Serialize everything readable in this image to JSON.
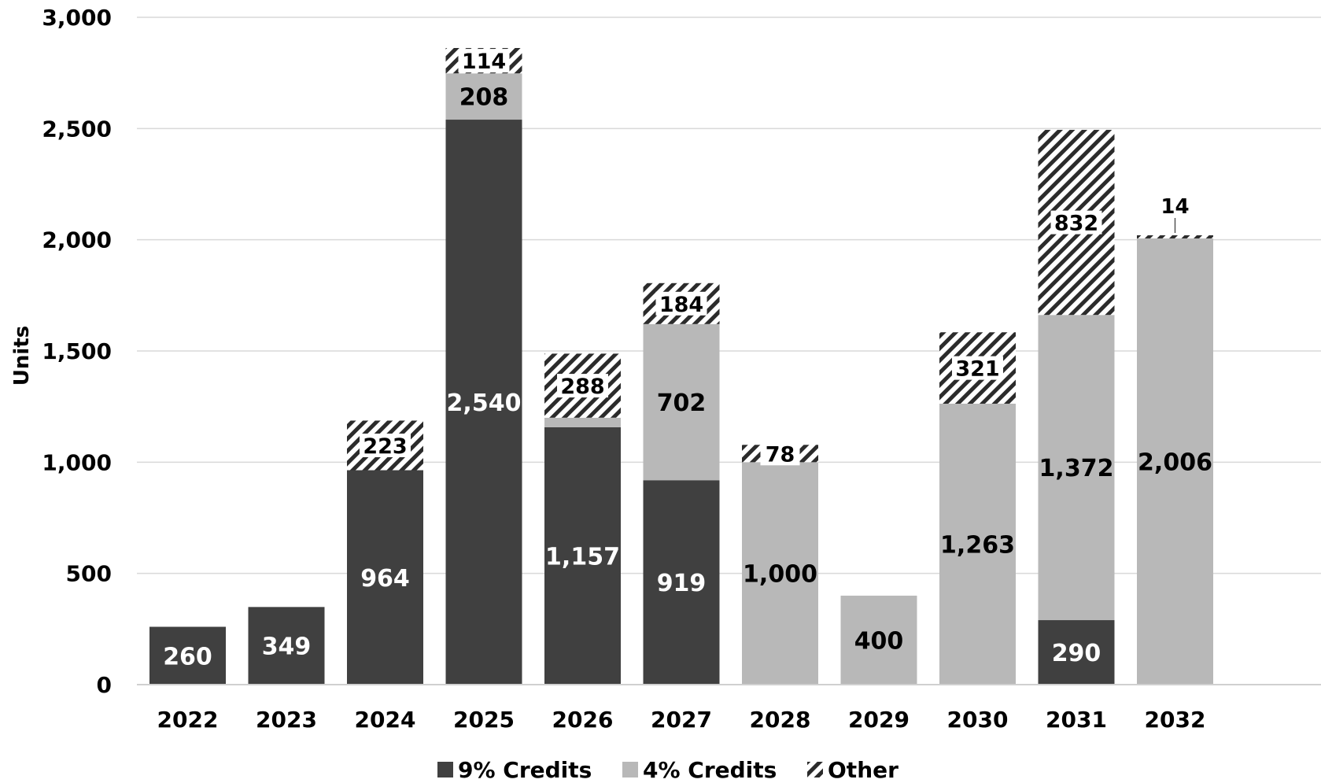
{
  "chart_data": {
    "type": "bar",
    "stacked": true,
    "title": "",
    "xlabel": "",
    "ylabel": "Units",
    "ylim": [
      0,
      3000
    ],
    "yticks": [
      0,
      500,
      1000,
      1500,
      2000,
      2500,
      3000
    ],
    "ytick_labels": [
      "0",
      "500",
      "1,000",
      "1,500",
      "2,000",
      "2,500",
      "3,000"
    ],
    "grid": true,
    "legend_position": "bottom",
    "categories": [
      "2022",
      "2023",
      "2024",
      "2025",
      "2026",
      "2027",
      "2028",
      "2029",
      "2030",
      "2031",
      "2032"
    ],
    "series": [
      {
        "name": "9% Credits",
        "color": "#404040",
        "pattern": "solid",
        "values": [
          260,
          349,
          964,
          2540,
          1157,
          919,
          0,
          0,
          0,
          290,
          0
        ],
        "labels": [
          "260",
          "349",
          "964",
          "2,540",
          "1,157",
          "919",
          "",
          "",
          "",
          "290",
          ""
        ]
      },
      {
        "name": "4% Credits",
        "color": "#b8b8b8",
        "pattern": "solid",
        "values": [
          0,
          0,
          0,
          208,
          43,
          702,
          1000,
          400,
          1263,
          1372,
          2006
        ],
        "labels": [
          "",
          "",
          "",
          "208",
          "",
          "702",
          "1,000",
          "400",
          "1,263",
          "1,372",
          "2,006"
        ]
      },
      {
        "name": "Other",
        "color": "#2b2b2b",
        "pattern": "diagonal-hatch",
        "values": [
          0,
          0,
          223,
          114,
          288,
          184,
          78,
          0,
          321,
          832,
          14
        ],
        "labels": [
          "",
          "",
          "223",
          "114",
          "288",
          "184",
          "78",
          "",
          "321",
          "832",
          "14"
        ]
      }
    ]
  }
}
